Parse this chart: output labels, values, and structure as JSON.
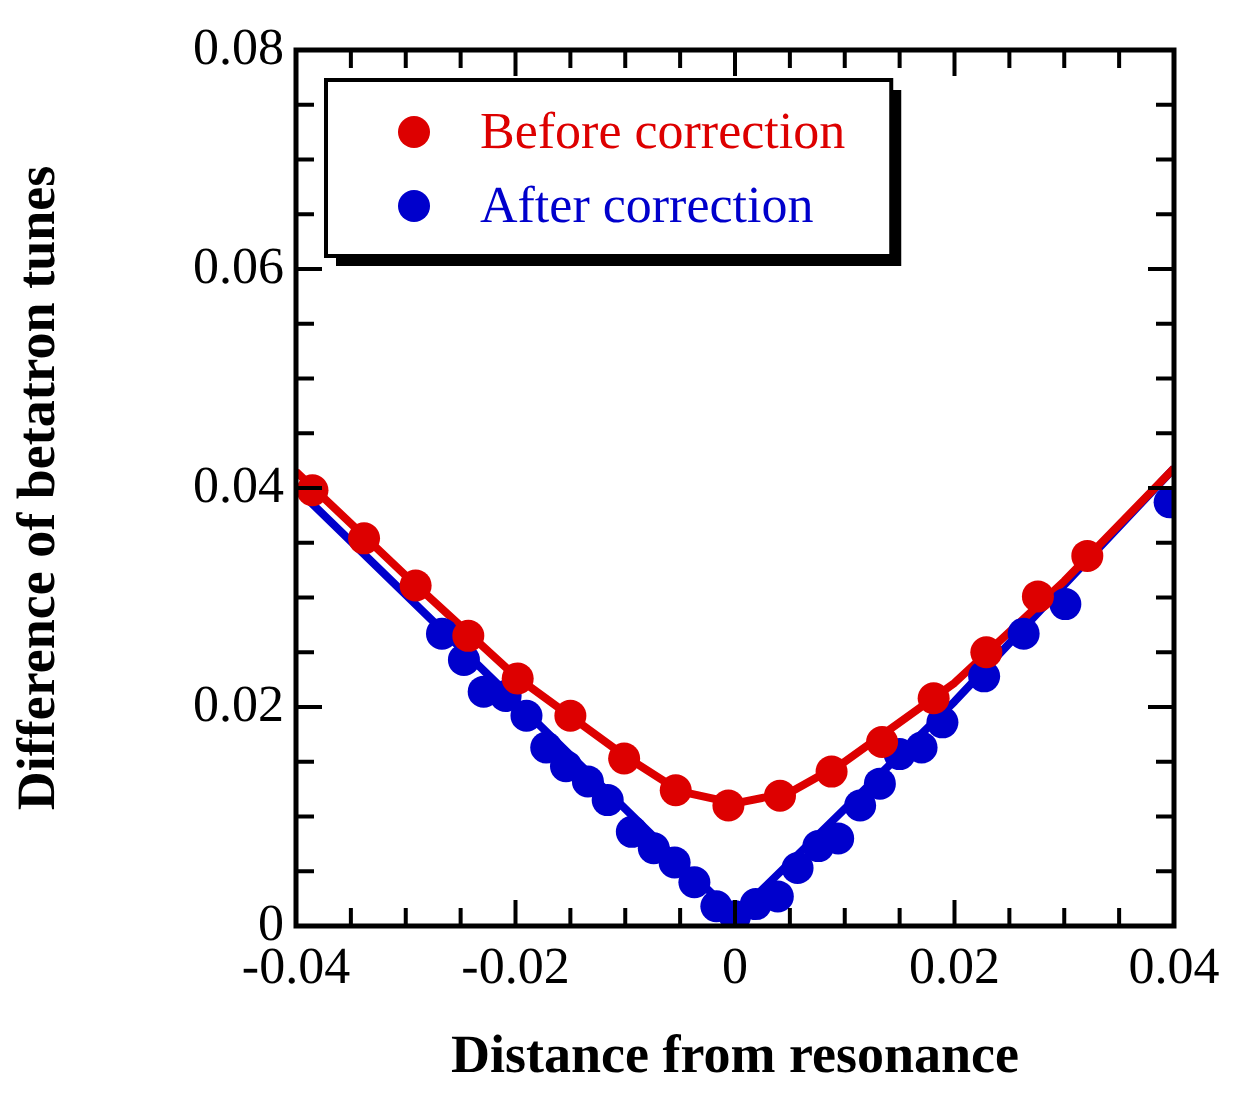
{
  "chart_data": {
    "type": "scatter",
    "xlabel": "Distance from resonance",
    "ylabel": "Difference of betatron tunes",
    "xlim": [
      -0.04,
      0.04
    ],
    "ylim": [
      0,
      0.08
    ],
    "xticks": [
      -0.04,
      {
        "value": -0.035,
        "label": null
      },
      {
        "value": -0.03,
        "label": null
      },
      {
        "value": -0.025,
        "label": null
      },
      -0.02,
      {
        "value": -0.015,
        "label": null
      },
      {
        "value": -0.01,
        "label": null
      },
      {
        "value": -0.005,
        "label": null
      },
      0,
      {
        "value": 0.005,
        "label": null
      },
      {
        "value": 0.01,
        "label": null
      },
      {
        "value": 0.015,
        "label": null
      },
      0.02,
      {
        "value": 0.025,
        "label": null
      },
      {
        "value": 0.03,
        "label": null
      },
      {
        "value": 0.035,
        "label": null
      },
      0.04
    ],
    "yticks": [
      0,
      {
        "value": 0.005,
        "label": null
      },
      {
        "value": 0.01,
        "label": null
      },
      {
        "value": 0.015,
        "label": null
      },
      0.02,
      {
        "value": 0.025,
        "label": null
      },
      {
        "value": 0.03,
        "label": null
      },
      {
        "value": 0.035,
        "label": null
      },
      0.04,
      {
        "value": 0.045,
        "label": null
      },
      {
        "value": 0.05,
        "label": null
      },
      {
        "value": 0.055,
        "label": null
      },
      0.06,
      {
        "value": 0.065,
        "label": null
      },
      {
        "value": 0.07,
        "label": null
      },
      {
        "value": 0.075,
        "label": null
      },
      0.08
    ],
    "marker": "circle",
    "legend": "top left",
    "series": [
      {
        "type": "line",
        "marker": "none",
        "color": "#dd0000",
        "x": [
          -0.04,
          -0.03,
          -0.02,
          -0.01,
          -0.005,
          0,
          0.005,
          0.01,
          0.02,
          0.03,
          0.04
        ],
        "values": [
          0.0415,
          0.032,
          0.0228,
          0.0155,
          0.0123,
          0.0112,
          0.0122,
          0.015,
          0.0222,
          0.0315,
          0.0418
        ]
      },
      {
        "type": "line",
        "marker": "none",
        "color": "#0000cc",
        "x": [
          -0.04,
          -0.02,
          0,
          0.02,
          0.04
        ],
        "values": [
          0.04,
          0.0205,
          0.0009,
          0.0205,
          0.0418
        ]
      },
      {
        "name": "Before correction",
        "color": "#dd0000",
        "x": [
          -0.0385,
          -0.0338,
          -0.0291,
          -0.0243,
          -0.0198,
          -0.015,
          -0.0101,
          -0.0054,
          -0.0006,
          0.0041,
          0.0088,
          0.0134,
          0.0181,
          0.0229,
          0.0276,
          0.0321
        ],
        "values": [
          0.0398,
          0.0354,
          0.0311,
          0.0265,
          0.0226,
          0.0192,
          0.0153,
          0.0124,
          0.011,
          0.0119,
          0.0141,
          0.0168,
          0.0208,
          0.025,
          0.0301,
          0.0338
        ]
      },
      {
        "name": "After correction",
        "color": "#0000cc",
        "x": [
          -0.0267,
          -0.0247,
          -0.0229,
          -0.0209,
          -0.019,
          -0.0172,
          -0.0154,
          -0.0134,
          -0.0116,
          -0.0094,
          -0.0074,
          -0.0055,
          -0.0037,
          -0.0017,
          0,
          0.0019,
          0.0039,
          0.0057,
          0.0076,
          0.0094,
          0.0114,
          0.0132,
          0.015,
          0.017,
          0.0189,
          0.0227,
          0.0263,
          0.0301,
          0.0396
        ],
        "values": [
          0.0267,
          0.0243,
          0.0214,
          0.021,
          0.0192,
          0.0163,
          0.0146,
          0.0132,
          0.0115,
          0.0086,
          0.0071,
          0.0058,
          0.004,
          0.0018,
          0.0009,
          0.002,
          0.0027,
          0.0053,
          0.0073,
          0.008,
          0.011,
          0.013,
          0.0157,
          0.0163,
          0.0186,
          0.0228,
          0.0267,
          0.0294,
          0.0387
        ]
      }
    ]
  }
}
